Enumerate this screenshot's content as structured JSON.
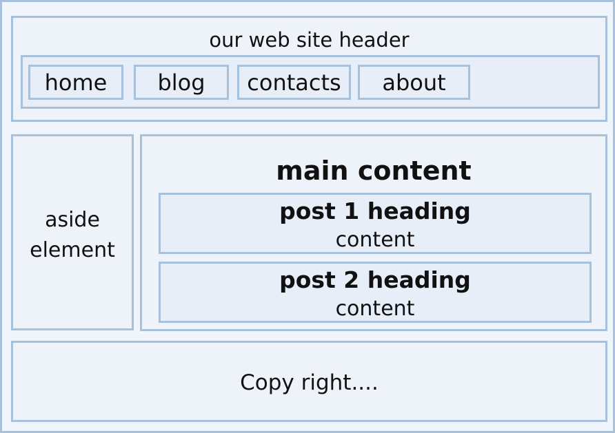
{
  "header": {
    "title": "our web site header",
    "nav": [
      "home",
      "blog",
      "contacts",
      "about"
    ]
  },
  "aside": {
    "line1": "aside",
    "line2": "element"
  },
  "main": {
    "title": "main content",
    "posts": [
      {
        "heading": "post 1 heading",
        "content": "content"
      },
      {
        "heading": "post 2 heading",
        "content": "content"
      }
    ]
  },
  "footer": {
    "text": "Copy right...."
  },
  "colors": {
    "border": "#a7c1dc",
    "fill": "#eef3fa",
    "inner_fill": "#e7eef7"
  }
}
